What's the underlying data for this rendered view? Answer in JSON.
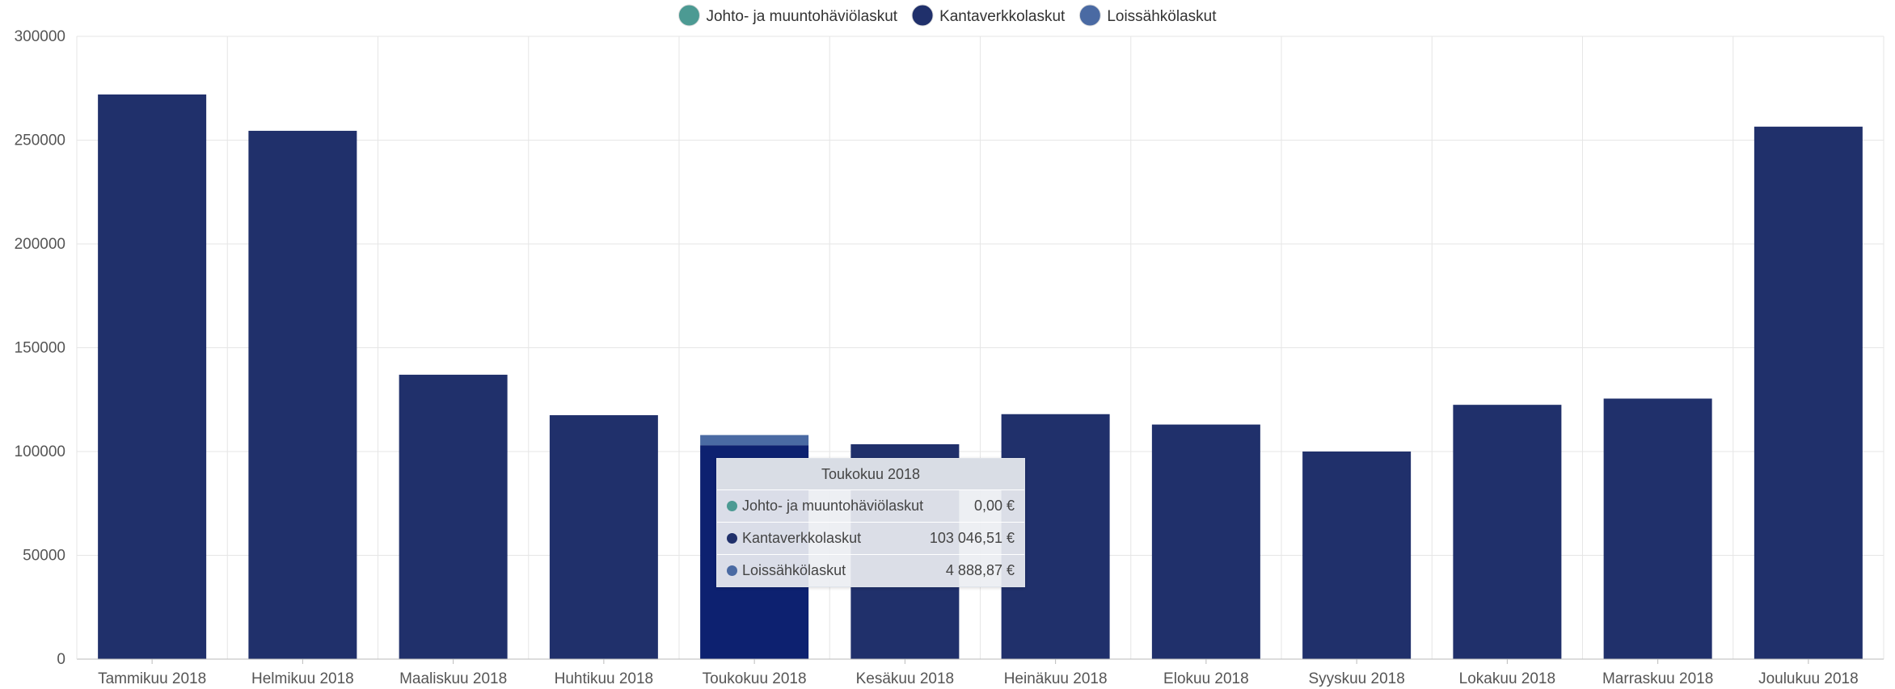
{
  "chart_data": {
    "type": "bar",
    "stacked": true,
    "categories": [
      "Tammikuu 2018",
      "Helmikuu 2018",
      "Maaliskuu 2018",
      "Huhtikuu 2018",
      "Toukokuu 2018",
      "Kesäkuu 2018",
      "Heinäkuu 2018",
      "Elokuu 2018",
      "Syyskuu 2018",
      "Lokakuu 2018",
      "Marraskuu 2018",
      "Joulukuu 2018"
    ],
    "series": [
      {
        "name": "Johto- ja muuntohäviölaskut",
        "color": "#4c9a93",
        "values": [
          0,
          0,
          0,
          0,
          0,
          0,
          0,
          0,
          0,
          0,
          0,
          0
        ]
      },
      {
        "name": "Kantaverkkolaskut",
        "color": "#20306b",
        "values": [
          272000,
          254500,
          137000,
          117500,
          103046.51,
          103500,
          118000,
          113000,
          100000,
          122500,
          125500,
          256500
        ]
      },
      {
        "name": "Loissähkölaskut",
        "color": "#4a6aa3",
        "values": [
          0,
          0,
          0,
          0,
          4888.87,
          0,
          0,
          0,
          0,
          0,
          0,
          0
        ]
      }
    ],
    "ylim": [
      0,
      300000
    ],
    "yticks": [
      "0",
      "50000",
      "100000",
      "150000",
      "200000",
      "250000",
      "300000"
    ],
    "ytick_values": [
      0,
      50000,
      100000,
      150000,
      200000,
      250000,
      300000
    ],
    "grid": true,
    "legend": "top-center",
    "highlight_index": 4,
    "highlight_color": "#0d2170"
  },
  "tooltip": {
    "title": "Toukokuu 2018",
    "rows": [
      {
        "name": "Johto- ja muuntohäviölaskut",
        "value": "0,00 €",
        "color": "#4c9a93"
      },
      {
        "name": "Kantaverkkolaskut",
        "value": "103 046,51 €",
        "color": "#20306b"
      },
      {
        "name": "Loissähkölaskut",
        "value": "4 888,87 €",
        "color": "#4a6aa3"
      }
    ]
  }
}
